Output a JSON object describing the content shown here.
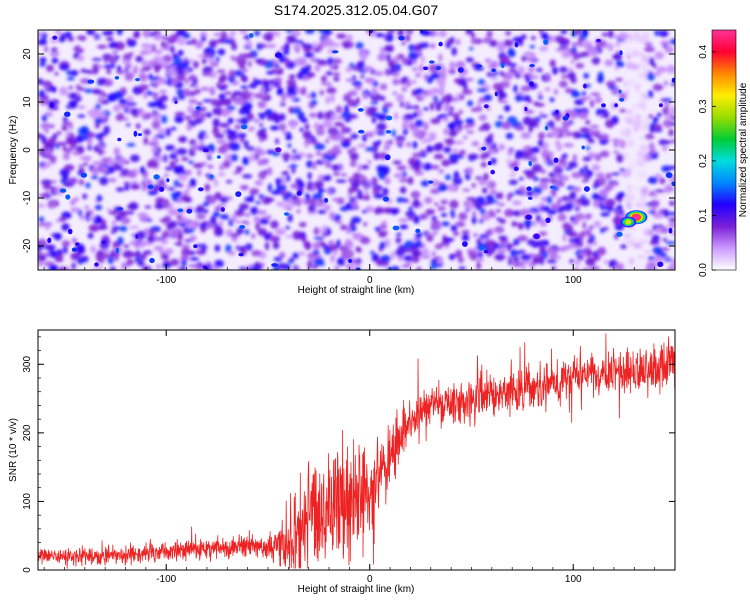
{
  "title": "S174.2025.312.05.04.G07",
  "chart_data": [
    {
      "type": "heatmap",
      "title": "S174.2025.312.05.04.G07",
      "xlabel": "Height of straight line (km)",
      "ylabel": "Frequency (Hz)",
      "xlim": [
        -163,
        150
      ],
      "ylim": [
        -25,
        25
      ],
      "x_ticks": [
        -100,
        0,
        100
      ],
      "y_ticks": [
        -20,
        -10,
        0,
        10,
        20
      ],
      "colorbar": {
        "label": "Normalized spectral amplitude",
        "range": [
          0,
          0.44
        ],
        "ticks": [
          "0.0",
          "0.1",
          "0.2",
          "0.3",
          "0.4"
        ],
        "colors": [
          "#ffffff",
          "#cc99ff",
          "#7a1fd6",
          "#2200ff",
          "#0088ff",
          "#00dddd",
          "#00cc33",
          "#99dd00",
          "#ffee00",
          "#ff8800",
          "#ff0033",
          "#ff3399"
        ]
      },
      "clear_band_x": [
        125,
        137
      ],
      "hotspots": [
        {
          "x": 131,
          "y": -14,
          "value": 0.44
        },
        {
          "x": 127,
          "y": -15,
          "value": 0.3
        },
        {
          "x": 82,
          "y": -18,
          "value": 0.12
        },
        {
          "x": -45,
          "y": 0,
          "value": 0.1
        },
        {
          "x": 78,
          "y": -14,
          "value": 0.12
        }
      ],
      "grid": false
    },
    {
      "type": "line",
      "xlabel": "Height of straight line (km)",
      "ylabel": "SNR (10 * v/v)",
      "xlim": [
        -163,
        150
      ],
      "ylim": [
        0,
        350
      ],
      "x_ticks": [
        -100,
        0,
        100
      ],
      "y_ticks": [
        0,
        100,
        200,
        300
      ],
      "line_color": "#ee2222",
      "trend": {
        "x": [
          -163,
          -120,
          -80,
          -50,
          -35,
          -25,
          -15,
          -8,
          0,
          5,
          12,
          20,
          30,
          50,
          70,
          90,
          110,
          130,
          150
        ],
        "y": [
          20,
          22,
          30,
          35,
          45,
          90,
          100,
          110,
          120,
          140,
          180,
          220,
          240,
          250,
          262,
          272,
          285,
          290,
          300
        ]
      },
      "noise_amplitude": {
        "x": [
          -163,
          -50,
          -35,
          -5,
          5,
          20,
          150
        ],
        "y": [
          10,
          14,
          70,
          70,
          50,
          25,
          28
        ]
      },
      "grid": false
    }
  ]
}
